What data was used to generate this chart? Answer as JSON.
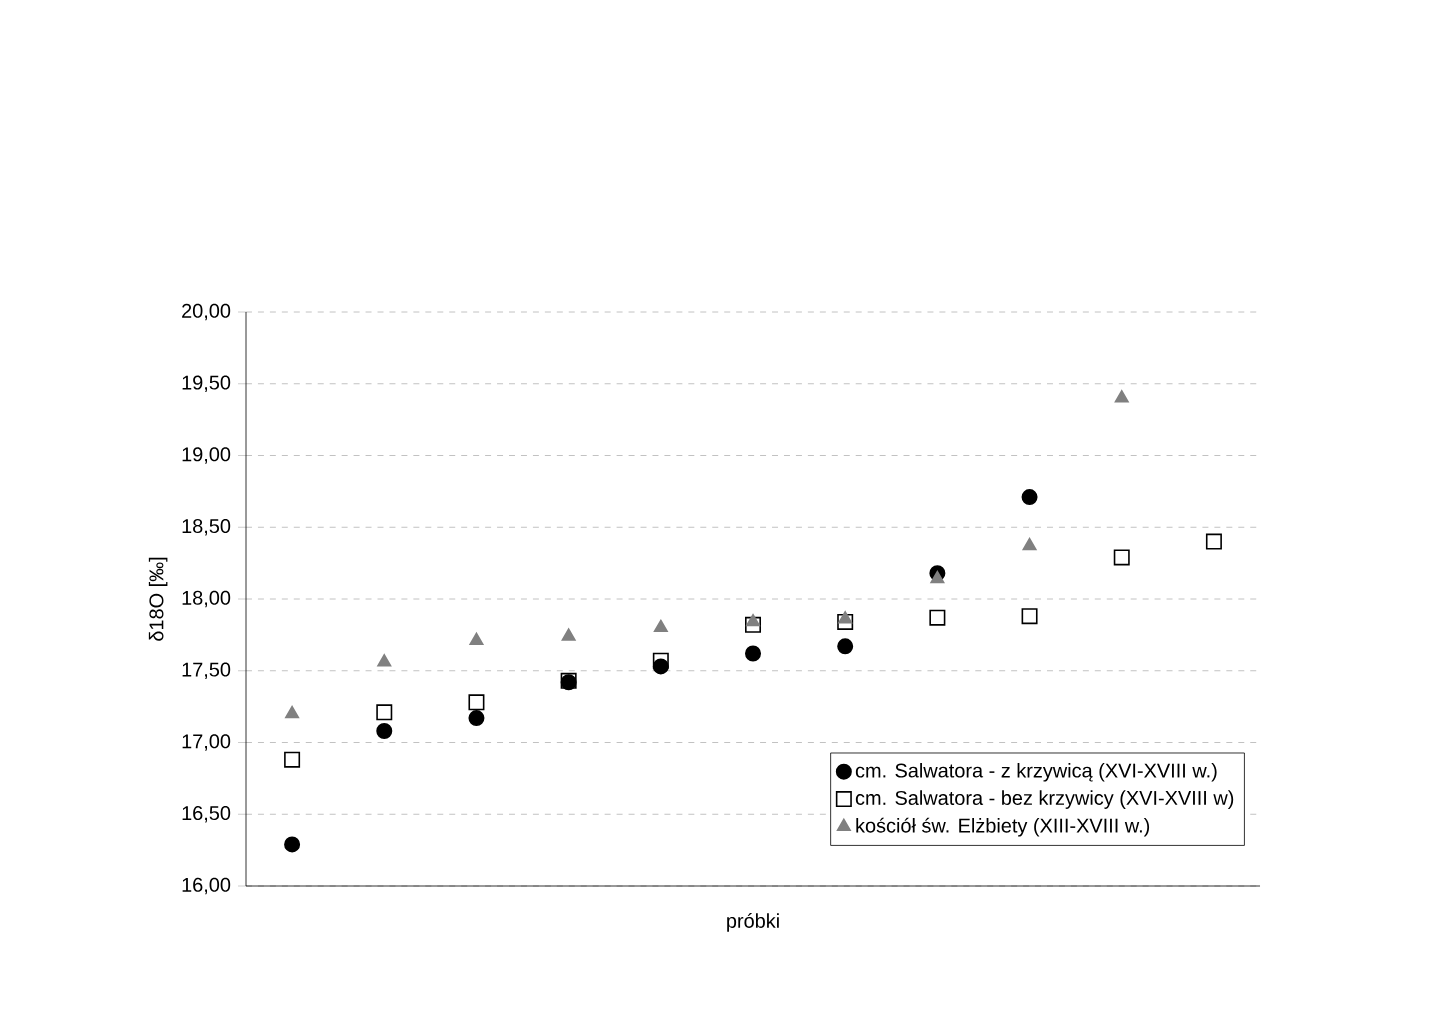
{
  "chart_data": {
    "type": "scatter",
    "xlabel": "próbki",
    "ylabel": "δ18O [‰]",
    "categories": [
      null,
      null,
      null,
      null,
      null,
      null,
      null,
      null,
      null,
      null,
      null
    ],
    "ylim": [
      16,
      20
    ],
    "yticks": [
      {
        "value": 16,
        "label": "16,00"
      },
      {
        "value": 16.5,
        "label": "16,50"
      },
      {
        "value": 17,
        "label": "17,00"
      },
      {
        "value": 17.5,
        "label": "17,50"
      },
      {
        "value": 18,
        "label": "18,00"
      },
      {
        "value": 18.5,
        "label": "18,50"
      },
      {
        "value": 19,
        "label": "19,00"
      },
      {
        "value": 19.5,
        "label": "19,50"
      },
      {
        "value": 20,
        "label": "20,00"
      }
    ],
    "grid": "y",
    "legend": "bottom right",
    "series": [
      {
        "name": "cm. Salwatora - z krzywicą (XVI-XVIII w.)",
        "color": "#000000",
        "marker": "circle",
        "values": [
          16.29,
          17.08,
          17.17,
          17.42,
          17.53,
          17.62,
          17.67,
          18.18,
          18.71,
          null,
          null
        ]
      },
      {
        "name": "cm. Salwatora - bez krzywicy (XVI-XVIII w)",
        "color": "#000000",
        "marker": "square",
        "values": [
          16.88,
          17.21,
          17.28,
          17.43,
          17.57,
          17.82,
          17.84,
          17.87,
          17.88,
          18.29,
          18.4
        ]
      },
      {
        "name": "kościół św. Elżbiety (XIII-XVIII w.)",
        "color": "#808080",
        "marker": "triangle",
        "values": [
          17.2,
          17.56,
          17.71,
          17.74,
          17.8,
          17.84,
          17.86,
          18.14,
          18.37,
          19.4,
          null
        ]
      }
    ]
  }
}
